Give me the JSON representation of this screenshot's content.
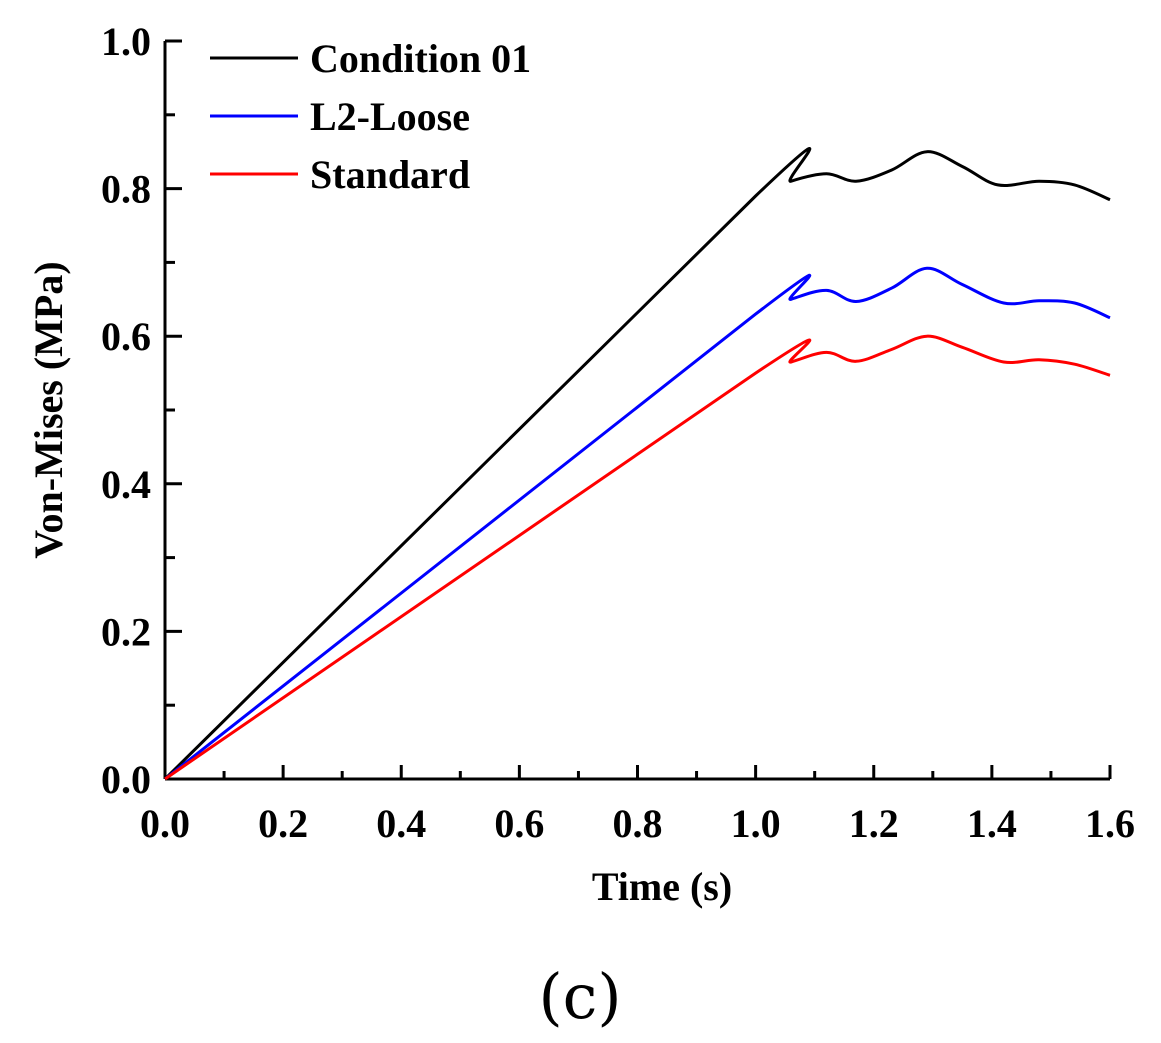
{
  "chart_data": {
    "type": "line",
    "title": "",
    "xlabel": "Time (s)",
    "ylabel": "Von-Mises (MPa)",
    "xlim": [
      0.0,
      1.6
    ],
    "ylim": [
      0.0,
      1.0
    ],
    "xticks": [
      "0.0",
      "0.2",
      "0.4",
      "0.6",
      "0.8",
      "1.0",
      "1.2",
      "1.4",
      "1.6"
    ],
    "xtick_values": [
      0.0,
      0.2,
      0.4,
      0.6,
      0.8,
      1.0,
      1.2,
      1.4,
      1.6
    ],
    "yticks": [
      "0.0",
      "0.2",
      "0.4",
      "0.6",
      "0.8",
      "1.0"
    ],
    "ytick_values": [
      0.0,
      0.2,
      0.4,
      0.6,
      0.8,
      1.0
    ],
    "grid": false,
    "legend_position": "top-left",
    "panel_label": "(c)",
    "series": [
      {
        "name": "Condition 01",
        "color": "#000000",
        "x": [
          0.0,
          1.0,
          1.06,
          1.12,
          1.17,
          1.23,
          1.29,
          1.35,
          1.41,
          1.48,
          1.54,
          1.6
        ],
        "y": [
          0.0,
          0.79,
          0.81,
          0.82,
          0.81,
          0.825,
          0.85,
          0.83,
          0.805,
          0.81,
          0.805,
          0.785
        ]
      },
      {
        "name": "L2-Loose",
        "color": "#0000ff",
        "x": [
          0.0,
          1.0,
          1.06,
          1.12,
          1.17,
          1.23,
          1.29,
          1.35,
          1.42,
          1.48,
          1.54,
          1.6
        ],
        "y": [
          0.0,
          0.63,
          0.65,
          0.662,
          0.647,
          0.665,
          0.692,
          0.67,
          0.645,
          0.648,
          0.645,
          0.625
        ]
      },
      {
        "name": "Standard",
        "color": "#ff0000",
        "x": [
          0.0,
          1.0,
          1.06,
          1.12,
          1.17,
          1.23,
          1.29,
          1.35,
          1.42,
          1.48,
          1.54,
          1.6
        ],
        "y": [
          0.0,
          0.55,
          0.565,
          0.578,
          0.566,
          0.582,
          0.6,
          0.585,
          0.565,
          0.568,
          0.562,
          0.547
        ]
      }
    ]
  }
}
